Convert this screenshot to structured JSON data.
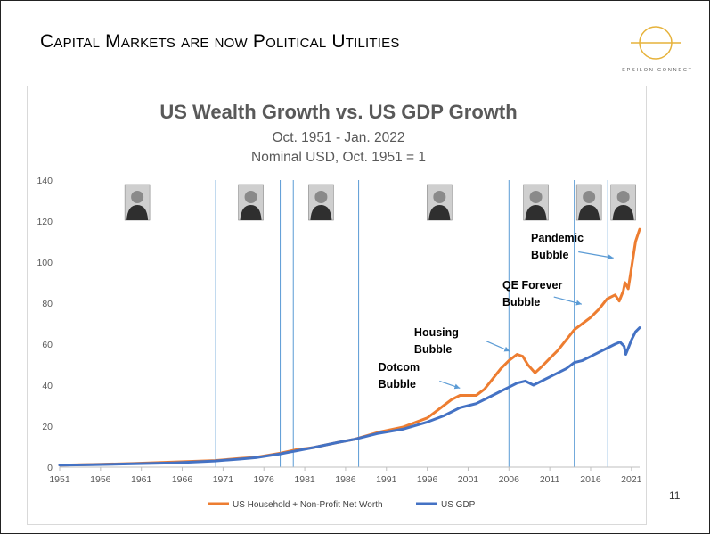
{
  "slide": {
    "title": "Capital Markets are now Political Utilities",
    "logo_text": "EPSILON CONNECT",
    "page_number": "11",
    "accent_color": "#e6b23a"
  },
  "chart_data": {
    "type": "line",
    "title": "US Wealth Growth vs. US GDP Growth",
    "subtitle": [
      "Oct. 1951 - Jan. 2022",
      "Nominal USD, Oct. 1951 = 1"
    ],
    "xlabel": "",
    "ylabel": "",
    "xlim": [
      1951,
      2022
    ],
    "ylim": [
      0,
      140
    ],
    "y_ticks": [
      0,
      20,
      40,
      60,
      80,
      100,
      120,
      140
    ],
    "x_ticks": [
      "1951",
      "1956",
      "1961",
      "1966",
      "1971",
      "1976",
      "1981",
      "1986",
      "1991",
      "1996",
      "2001",
      "2006",
      "2011",
      "2016",
      "2021"
    ],
    "grid": "none",
    "legend_position": "bottom",
    "vertical_markers": [
      1970.1,
      1978.0,
      1979.6,
      1987.6,
      2006.0,
      2014.0,
      2018.1
    ],
    "portrait_years": [
      1960.5,
      1974.4,
      1983.0,
      1997.5,
      2009.3,
      2015.8,
      2020.0
    ],
    "series": [
      {
        "name": "US Household + Non-Profit Net Worth",
        "color": "#ed7d31",
        "x": [
          1951,
          1955,
          1960,
          1965,
          1970,
          1973,
          1975,
          1978,
          1980,
          1982,
          1985,
          1987,
          1990,
          1993,
          1996,
          1997,
          1998,
          1999,
          2000,
          2001,
          2002,
          2003,
          2004,
          2005,
          2006,
          2007,
          2007.7,
          2008.3,
          2009.2,
          2010,
          2011,
          2012,
          2013,
          2014,
          2015,
          2016,
          2017,
          2018,
          2019,
          2019.5,
          2020,
          2020.2,
          2020.6,
          2021,
          2021.5,
          2022
        ],
        "values": [
          1,
          1.3,
          1.8,
          2.5,
          3.2,
          4.2,
          4.8,
          6.8,
          8.5,
          9.5,
          12,
          13.5,
          17,
          19.5,
          24,
          27,
          30,
          33,
          35,
          35,
          35,
          38,
          43,
          48,
          52,
          55,
          54,
          50,
          46,
          49,
          53,
          57,
          62,
          67,
          70,
          73,
          77,
          82,
          84,
          81,
          86,
          90,
          87,
          97,
          110,
          116
        ]
      },
      {
        "name": "US GDP",
        "color": "#4472c4",
        "x": [
          1951,
          1955,
          1960,
          1965,
          1970,
          1973,
          1975,
          1978,
          1980,
          1982,
          1985,
          1987,
          1990,
          1993,
          1996,
          1998,
          2000,
          2001,
          2002,
          2003,
          2004,
          2005,
          2006,
          2007,
          2008,
          2009,
          2010,
          2011,
          2012,
          2013,
          2014,
          2015,
          2016,
          2017,
          2018,
          2019,
          2019.6,
          2020.1,
          2020.3,
          2020.6,
          2021,
          2021.5,
          2022
        ],
        "values": [
          1,
          1.2,
          1.6,
          2.1,
          3.0,
          3.9,
          4.6,
          6.5,
          8.0,
          9.5,
          12,
          13.5,
          16.5,
          18.5,
          22,
          25,
          29,
          30,
          31,
          33,
          35,
          37,
          39,
          41,
          42,
          40,
          42,
          44,
          46,
          48,
          51,
          52,
          54,
          56,
          58,
          60,
          61,
          59,
          55,
          58,
          62,
          66,
          68
        ]
      }
    ],
    "annotations": [
      {
        "label": [
          "Dotcom",
          "Bubble"
        ],
        "text_at": [
          1990,
          47
        ],
        "arrow_from": [
          1997.5,
          42
        ],
        "arrow_to": [
          2000,
          38.5
        ]
      },
      {
        "label": [
          "Housing",
          "Bubble"
        ],
        "text_at": [
          1994.4,
          64
        ],
        "arrow_from": [
          2003.2,
          61.5
        ],
        "arrow_to": [
          2006.1,
          56.5
        ]
      },
      {
        "label": [
          "QE Forever",
          "Bubble"
        ],
        "text_at": [
          2005.2,
          87
        ],
        "arrow_from": [
          2011.5,
          83
        ],
        "arrow_to": [
          2014.9,
          79.5
        ]
      },
      {
        "label": [
          "Pandemic",
          "Bubble"
        ],
        "text_at": [
          2008.7,
          110
        ],
        "arrow_from": [
          2014.5,
          105
        ],
        "arrow_to": [
          2018.8,
          102
        ]
      }
    ]
  }
}
